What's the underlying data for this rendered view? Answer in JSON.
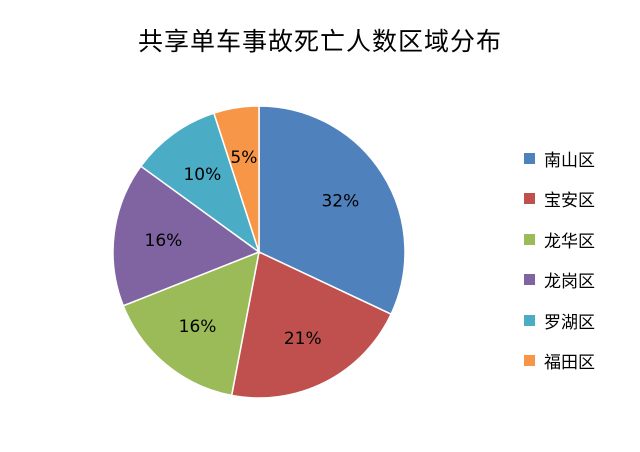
{
  "chart_data": {
    "type": "pie",
    "title": "共享单车事故死亡人数区域分布",
    "categories": [
      "南山区",
      "宝安区",
      "龙华区",
      "龙岗区",
      "罗湖区",
      "福田区"
    ],
    "values": [
      32,
      21,
      16,
      16,
      10,
      5
    ],
    "labels": [
      "32%",
      "21%",
      "16%",
      "16%",
      "10%",
      "5%"
    ],
    "colors": [
      "#4F81BD",
      "#C0504D",
      "#9BBB59",
      "#8064A2",
      "#4BACC6",
      "#F79646"
    ],
    "start_angle": "12 o'clock",
    "direction": "clockwise",
    "legend": "right"
  }
}
